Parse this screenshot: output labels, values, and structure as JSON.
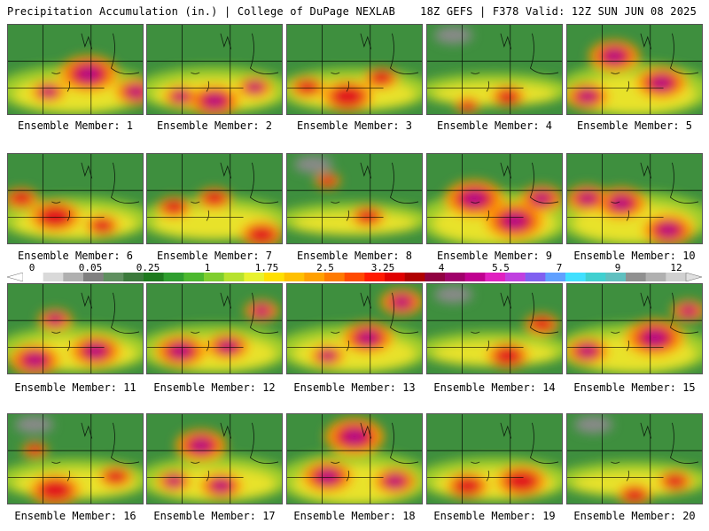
{
  "header": {
    "left": "Precipitation Accumulation (in.) | College of DuPage NEXLAB",
    "right": "18Z GEFS | F378 Valid: 12Z SUN JUN 08 2025"
  },
  "caption_prefix": "Ensemble Member:",
  "members": [
    {
      "number": "1",
      "intensity": 0.62,
      "hot": [
        [
          0.6,
          0.55,
          0.35
        ],
        [
          0.95,
          0.75,
          0.25
        ],
        [
          0.3,
          0.75,
          0.2
        ]
      ]
    },
    {
      "number": "2",
      "intensity": 0.55,
      "hot": [
        [
          0.5,
          0.85,
          0.3
        ],
        [
          0.25,
          0.8,
          0.2
        ],
        [
          0.8,
          0.7,
          0.2
        ]
      ]
    },
    {
      "number": "3",
      "intensity": 0.5,
      "hot": [
        [
          0.45,
          0.8,
          0.3
        ],
        [
          0.7,
          0.6,
          0.2
        ],
        [
          0.15,
          0.7,
          0.2
        ]
      ]
    },
    {
      "number": "4",
      "intensity": 0.3,
      "hot": [
        [
          0.6,
          0.8,
          0.2
        ],
        [
          0.3,
          0.9,
          0.15
        ]
      ]
    },
    {
      "number": "5",
      "intensity": 0.7,
      "hot": [
        [
          0.35,
          0.35,
          0.3
        ],
        [
          0.7,
          0.65,
          0.3
        ],
        [
          0.15,
          0.8,
          0.25
        ]
      ]
    },
    {
      "number": "6",
      "intensity": 0.5,
      "hot": [
        [
          0.35,
          0.7,
          0.3
        ],
        [
          0.1,
          0.5,
          0.2
        ],
        [
          0.7,
          0.8,
          0.2
        ]
      ]
    },
    {
      "number": "7",
      "intensity": 0.5,
      "hot": [
        [
          0.85,
          0.9,
          0.25
        ],
        [
          0.5,
          0.5,
          0.2
        ],
        [
          0.2,
          0.6,
          0.2
        ]
      ]
    },
    {
      "number": "8",
      "intensity": 0.3,
      "hot": [
        [
          0.6,
          0.7,
          0.2
        ],
        [
          0.3,
          0.3,
          0.15
        ]
      ]
    },
    {
      "number": "9",
      "intensity": 0.75,
      "hot": [
        [
          0.35,
          0.5,
          0.35
        ],
        [
          0.65,
          0.75,
          0.35
        ],
        [
          0.85,
          0.5,
          0.25
        ]
      ]
    },
    {
      "number": "10",
      "intensity": 0.7,
      "hot": [
        [
          0.4,
          0.55,
          0.3
        ],
        [
          0.75,
          0.85,
          0.3
        ],
        [
          0.15,
          0.5,
          0.25
        ]
      ]
    },
    {
      "number": "11",
      "intensity": 0.55,
      "hot": [
        [
          0.2,
          0.85,
          0.3
        ],
        [
          0.65,
          0.75,
          0.3
        ],
        [
          0.35,
          0.4,
          0.2
        ]
      ]
    },
    {
      "number": "12",
      "intensity": 0.6,
      "hot": [
        [
          0.25,
          0.75,
          0.3
        ],
        [
          0.6,
          0.7,
          0.25
        ],
        [
          0.85,
          0.3,
          0.2
        ]
      ]
    },
    {
      "number": "13",
      "intensity": 0.6,
      "hot": [
        [
          0.6,
          0.6,
          0.3
        ],
        [
          0.85,
          0.2,
          0.25
        ],
        [
          0.3,
          0.8,
          0.2
        ]
      ]
    },
    {
      "number": "14",
      "intensity": 0.35,
      "hot": [
        [
          0.6,
          0.8,
          0.25
        ],
        [
          0.85,
          0.45,
          0.2
        ]
      ]
    },
    {
      "number": "15",
      "intensity": 0.65,
      "hot": [
        [
          0.65,
          0.6,
          0.35
        ],
        [
          0.15,
          0.75,
          0.25
        ],
        [
          0.9,
          0.3,
          0.2
        ]
      ]
    },
    {
      "number": "16",
      "intensity": 0.45,
      "hot": [
        [
          0.35,
          0.85,
          0.3
        ],
        [
          0.8,
          0.7,
          0.2
        ],
        [
          0.2,
          0.4,
          0.15
        ]
      ]
    },
    {
      "number": "17",
      "intensity": 0.55,
      "hot": [
        [
          0.4,
          0.35,
          0.3
        ],
        [
          0.55,
          0.8,
          0.25
        ],
        [
          0.2,
          0.75,
          0.2
        ]
      ]
    },
    {
      "number": "18",
      "intensity": 0.7,
      "hot": [
        [
          0.5,
          0.25,
          0.35
        ],
        [
          0.3,
          0.7,
          0.3
        ],
        [
          0.8,
          0.75,
          0.25
        ]
      ]
    },
    {
      "number": "19",
      "intensity": 0.5,
      "hot": [
        [
          0.7,
          0.75,
          0.3
        ],
        [
          0.3,
          0.8,
          0.25
        ]
      ]
    },
    {
      "number": "20",
      "intensity": 0.35,
      "hot": [
        [
          0.8,
          0.75,
          0.2
        ],
        [
          0.5,
          0.9,
          0.2
        ]
      ]
    }
  ],
  "colorbar": {
    "labels": [
      "0",
      "0.05",
      "0.25",
      "1",
      "1.75",
      "2.5",
      "3.25",
      "4",
      "5.5",
      "7",
      "9",
      "12"
    ],
    "colors": [
      "#ffffff",
      "#d9d9d9",
      "#b0b0b0",
      "#808080",
      "#5f8f5f",
      "#3c7a3c",
      "#1e7a1e",
      "#2e9e2e",
      "#4cb82e",
      "#7fce2e",
      "#b7e22e",
      "#e8f22e",
      "#ffe000",
      "#ffc000",
      "#ffa000",
      "#ff7a00",
      "#ff4a00",
      "#ff1a00",
      "#e00000",
      "#b00000",
      "#900040",
      "#a0006a",
      "#c00090",
      "#e020c0",
      "#c040e0",
      "#8060f0",
      "#60a0ff",
      "#40e0ff",
      "#40d0d0",
      "#60c0c0",
      "#909090",
      "#b0b0b0",
      "#d0d0d0"
    ]
  }
}
